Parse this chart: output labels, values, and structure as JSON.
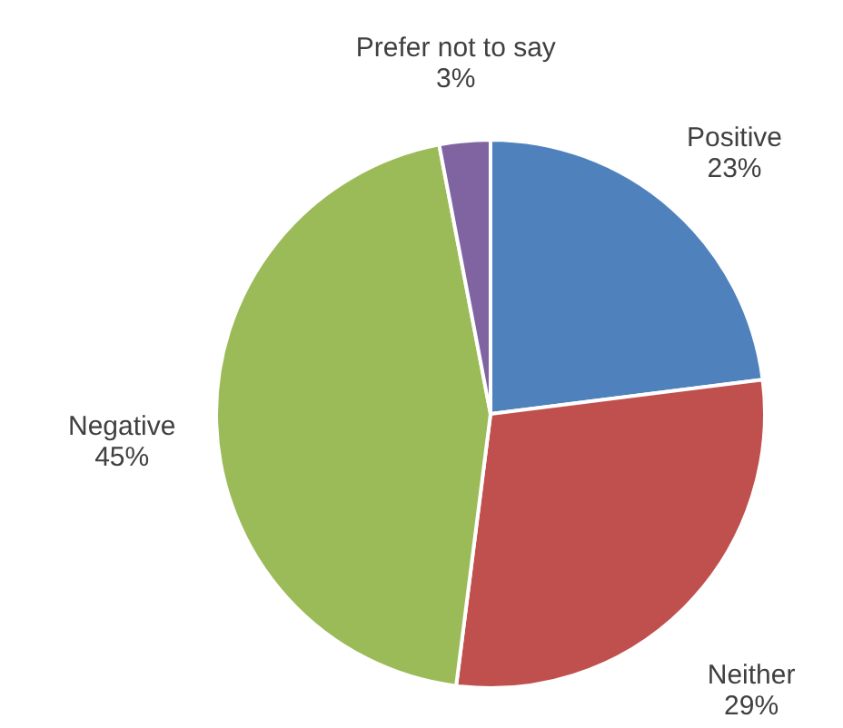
{
  "chart_data": {
    "type": "pie",
    "categories": [
      "Positive",
      "Neither",
      "Negative",
      "Prefer not to say"
    ],
    "values": [
      23,
      29,
      45,
      3
    ],
    "colors": [
      "#4f81bd",
      "#c0504d",
      "#9bbb59",
      "#8064a2"
    ],
    "value_labels": [
      "23%",
      "29%",
      "45%",
      "3%"
    ]
  }
}
